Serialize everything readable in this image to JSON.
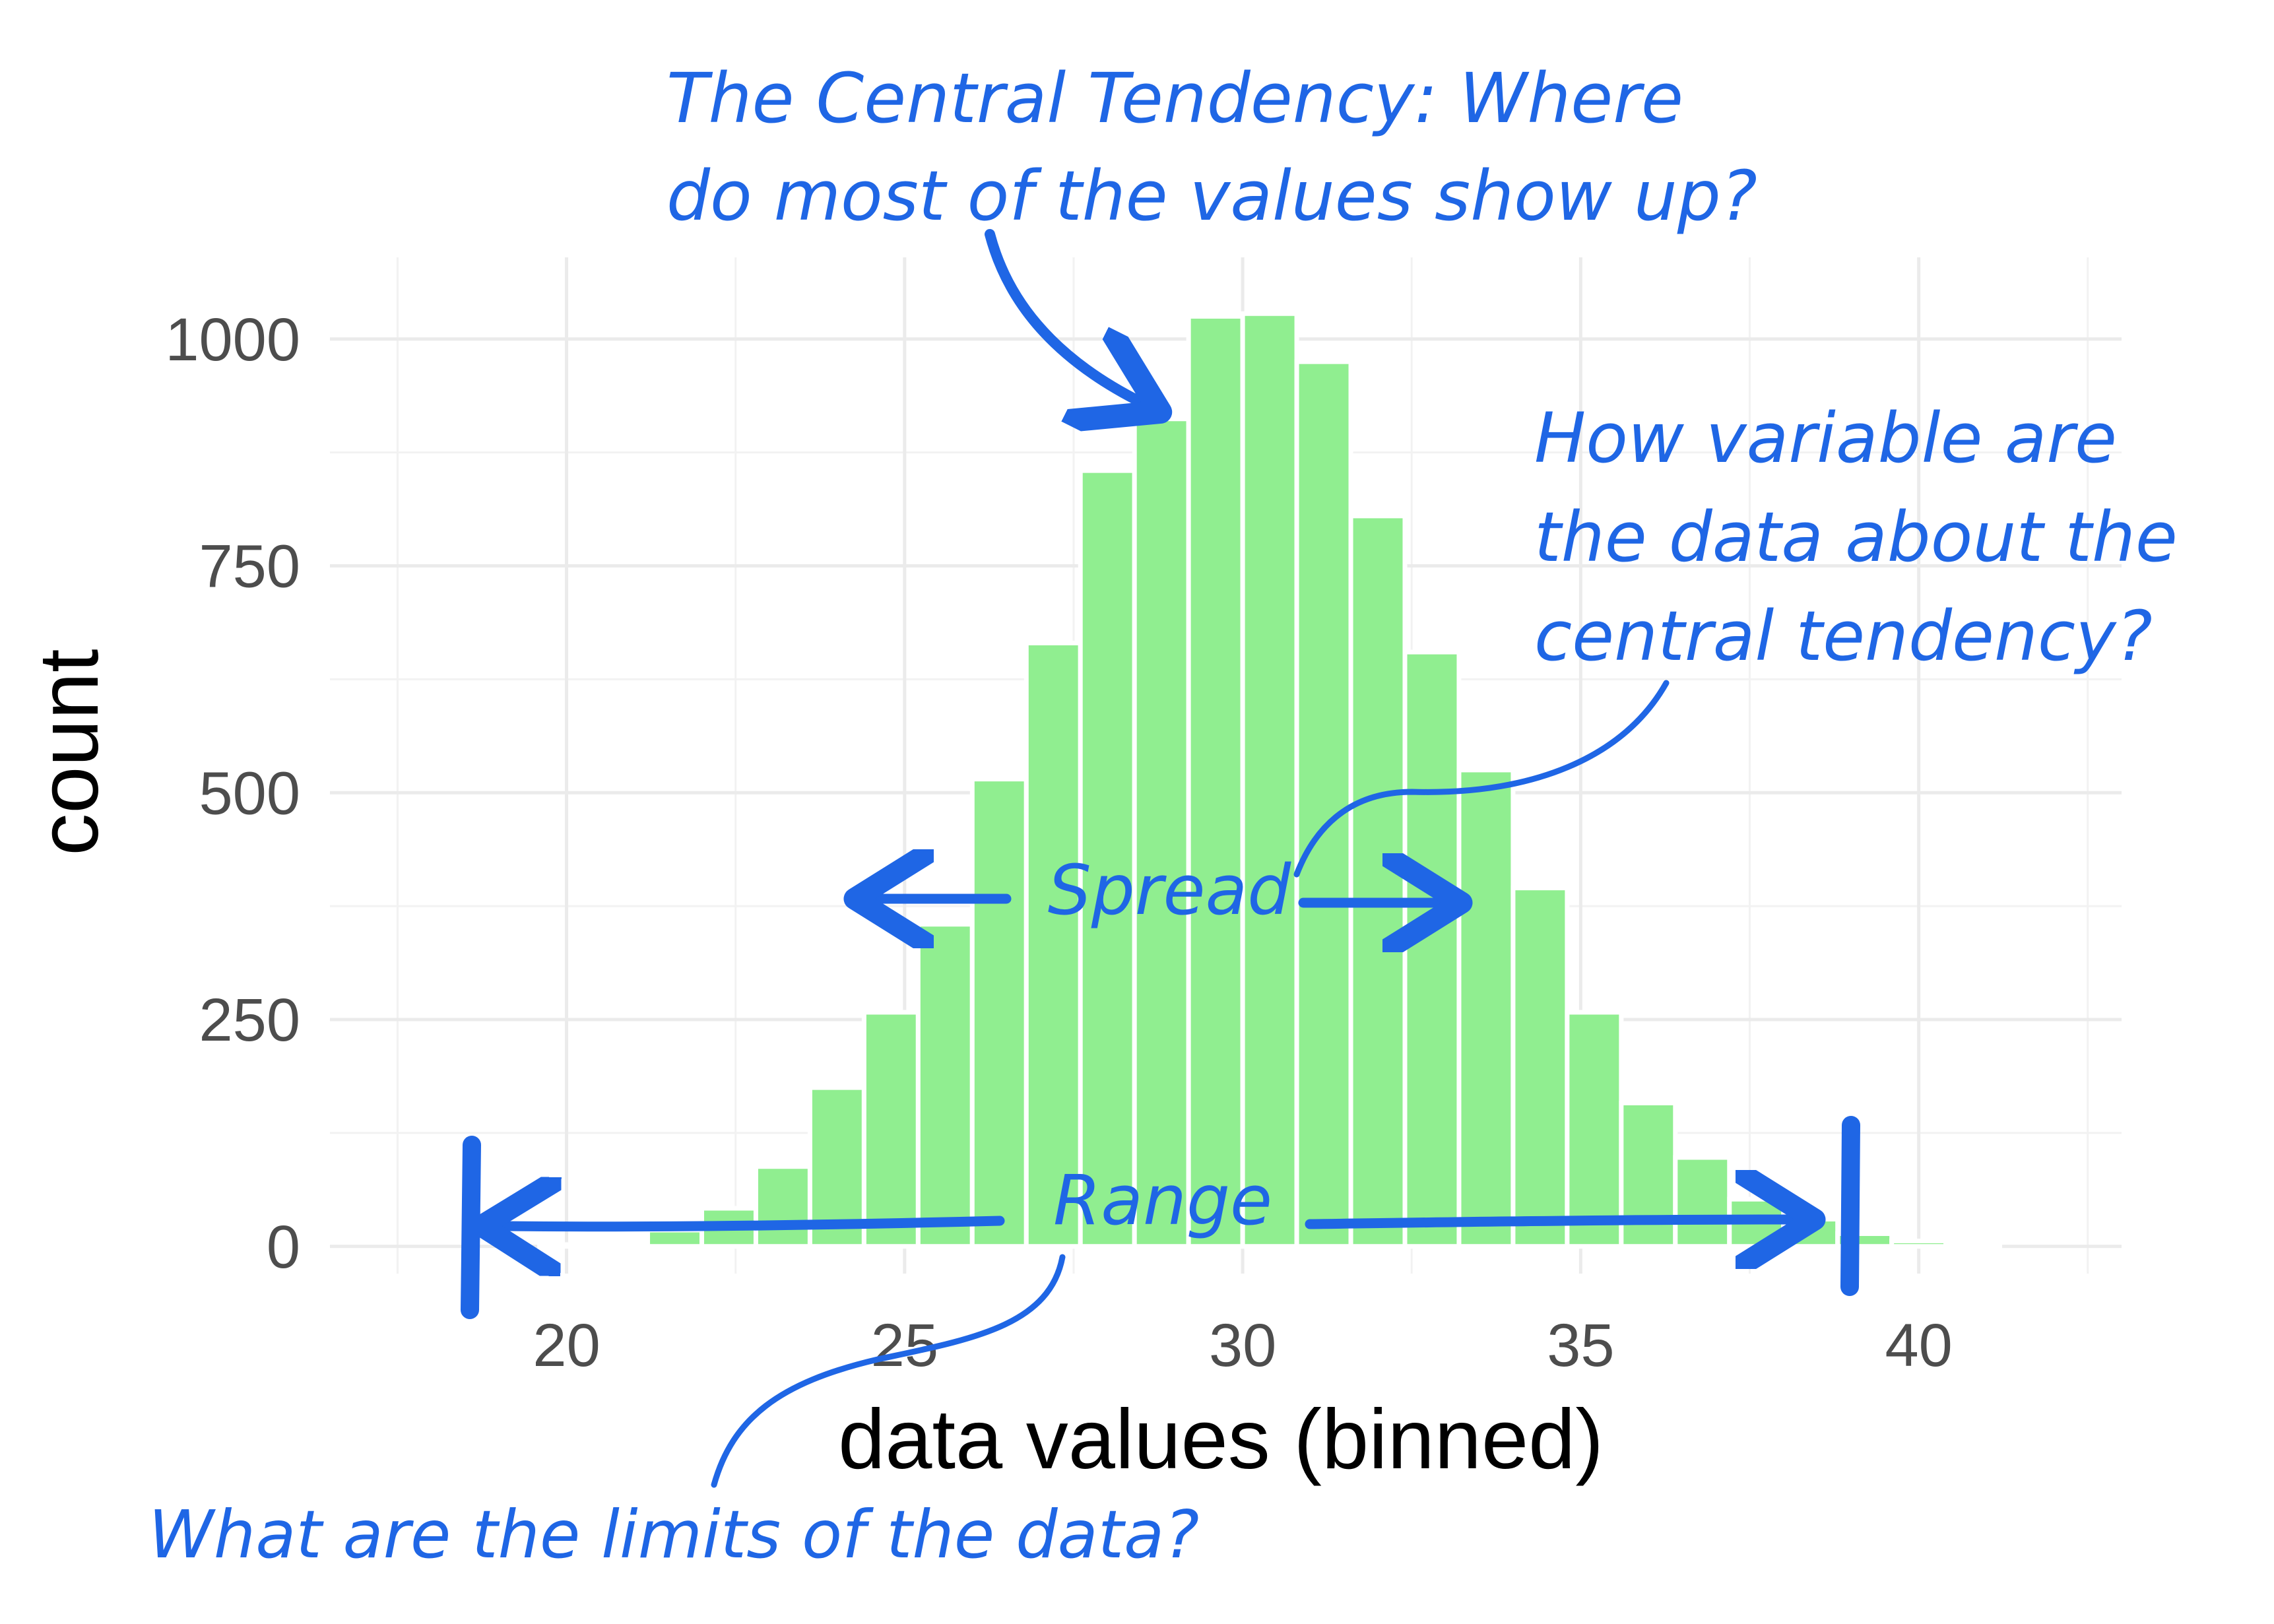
{
  "chart_data": {
    "type": "bar",
    "xlabel": "data values (binned)",
    "ylabel": "count",
    "xlim": [
      16.5,
      43.0
    ],
    "ylim": [
      -30,
      1090
    ],
    "x_ticks": [
      20,
      25,
      30,
      35,
      40
    ],
    "y_ticks": [
      0,
      250,
      500,
      750,
      1000
    ],
    "grid": true,
    "bin_width": 0.8,
    "x": [
      20.0,
      20.8,
      21.6,
      22.4,
      23.2,
      24.0,
      24.8,
      25.6,
      26.4,
      27.2,
      28.0,
      28.8,
      29.6,
      30.4,
      31.2,
      32.0,
      32.8,
      33.6,
      34.4,
      35.2,
      36.0,
      36.8,
      37.6,
      38.4,
      39.2,
      40.0,
      40.8
    ],
    "values": [
      2,
      4,
      18,
      42,
      88,
      175,
      258,
      355,
      515,
      665,
      855,
      912,
      1025,
      1028,
      975,
      805,
      655,
      525,
      395,
      258,
      158,
      98,
      52,
      30,
      14,
      6,
      2
    ],
    "bar_color": "#90ee90"
  },
  "annotations": {
    "color": "#1f66e5",
    "central_tendency": [
      "The  Central Tendency: Where",
      "do most of the values show up?"
    ],
    "variability": [
      "How variable are",
      "the data about the",
      "central tendency?"
    ],
    "spread": "Spread",
    "range": "Range",
    "limits": "What are  the limits of the data?"
  }
}
